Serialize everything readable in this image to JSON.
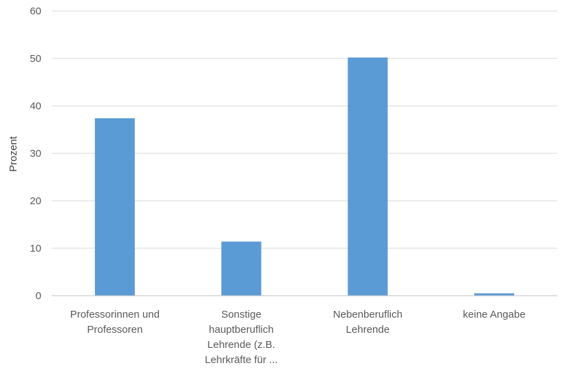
{
  "chart_data": {
    "type": "bar",
    "ylabel": "Prozent",
    "ylim": [
      0,
      60
    ],
    "yticks": [
      "0",
      "10",
      "20",
      "30",
      "40",
      "50",
      "60"
    ],
    "grid": true,
    "color": "#5b9bd5",
    "categories": [
      [
        "Professorinnen und",
        "Professoren"
      ],
      [
        "Sonstige",
        "hauptberuflich",
        "Lehrende (z.B.",
        "Lehrkräfte für ..."
      ],
      [
        "Nebenberuflich",
        "Lehrende"
      ],
      [
        "keine Angabe"
      ]
    ],
    "values": [
      37.4,
      11.4,
      50.2,
      0.5
    ]
  }
}
